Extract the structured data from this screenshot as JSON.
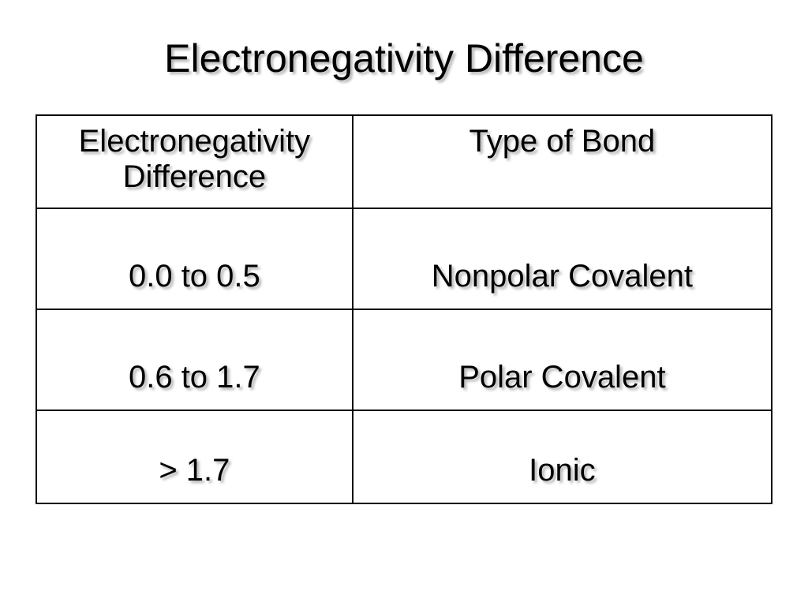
{
  "slide": {
    "title": "Electronegativity Difference",
    "title_fontsize": 50,
    "title_color": "#000000",
    "shadow_color": "rgba(128,128,128,0.6)",
    "background_color": "#ffffff"
  },
  "table": {
    "type": "table",
    "border_color": "#000000",
    "border_width": 2,
    "cell_fontsize": 40,
    "header_fontsize": 40,
    "text_color": "#000000",
    "columns": [
      {
        "label": "Electronegativity Difference",
        "width": "43%"
      },
      {
        "label": "Type of Bond",
        "width": "57%"
      }
    ],
    "rows": [
      {
        "range": "0.0 to 0.5",
        "bond": "Nonpolar Covalent"
      },
      {
        "range": "0.6 to 1.7",
        "bond": "Polar Covalent"
      },
      {
        "range": "> 1.7",
        "bond": "Ionic"
      }
    ]
  }
}
